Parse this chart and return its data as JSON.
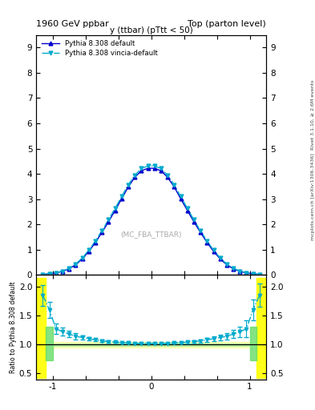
{
  "title_left": "1960 GeV ppbar",
  "title_right": "Top (parton level)",
  "plot_title": "y (ttbar) (pTtt < 50)",
  "watermark": "(MC_FBA_TTBAR)",
  "right_label_top": "Rivet 3.1.10, ≥ 2.6M events",
  "right_label_bottom": "mcplots.cern.ch [arXiv:1306.3436]",
  "ylabel_ratio": "Ratio to Pythia 8.308 default",
  "ylim_main": [
    0,
    9.5
  ],
  "ylim_ratio": [
    0.4,
    2.2
  ],
  "xlim": [
    -1.75,
    1.75
  ],
  "legend1": "Pythia 8.308 default",
  "legend2": "Pythia 8.308 vincia-default",
  "color_main": "#0000cc",
  "color_vincia": "#00aacc",
  "x_values": [
    -1.65,
    -1.55,
    -1.45,
    -1.35,
    -1.25,
    -1.15,
    -1.05,
    -0.95,
    -0.85,
    -0.75,
    -0.65,
    -0.55,
    -0.45,
    -0.35,
    -0.25,
    -0.15,
    -0.05,
    0.05,
    0.15,
    0.25,
    0.35,
    0.45,
    0.55,
    0.65,
    0.75,
    0.85,
    0.95,
    1.05,
    1.15,
    1.25,
    1.35,
    1.45,
    1.55,
    1.65
  ],
  "y_main": [
    0.02,
    0.04,
    0.08,
    0.14,
    0.24,
    0.4,
    0.63,
    0.93,
    1.28,
    1.68,
    2.1,
    2.55,
    3.01,
    3.48,
    3.86,
    4.12,
    4.22,
    4.22,
    4.12,
    3.86,
    3.48,
    3.01,
    2.55,
    2.1,
    1.68,
    1.28,
    0.93,
    0.63,
    0.4,
    0.24,
    0.14,
    0.08,
    0.04,
    0.02
  ],
  "y_vincia": [
    0.02,
    0.04,
    0.08,
    0.15,
    0.26,
    0.43,
    0.67,
    0.98,
    1.34,
    1.75,
    2.18,
    2.64,
    3.1,
    3.57,
    3.94,
    4.21,
    4.31,
    4.31,
    4.21,
    3.94,
    3.57,
    3.1,
    2.64,
    2.18,
    1.75,
    1.34,
    0.98,
    0.67,
    0.43,
    0.26,
    0.15,
    0.08,
    0.04,
    0.02
  ],
  "y_err_main": [
    0.003,
    0.004,
    0.006,
    0.008,
    0.011,
    0.015,
    0.018,
    0.022,
    0.026,
    0.03,
    0.034,
    0.037,
    0.04,
    0.042,
    0.044,
    0.045,
    0.045,
    0.045,
    0.044,
    0.042,
    0.04,
    0.037,
    0.034,
    0.03,
    0.026,
    0.022,
    0.018,
    0.015,
    0.011,
    0.008,
    0.006,
    0.004,
    0.003,
    0.002
  ],
  "y_err_vincia": [
    0.003,
    0.004,
    0.006,
    0.008,
    0.011,
    0.015,
    0.018,
    0.022,
    0.026,
    0.03,
    0.034,
    0.037,
    0.04,
    0.042,
    0.044,
    0.045,
    0.045,
    0.045,
    0.044,
    0.042,
    0.04,
    0.037,
    0.034,
    0.03,
    0.026,
    0.022,
    0.018,
    0.015,
    0.011,
    0.008,
    0.006,
    0.004,
    0.003,
    0.002
  ],
  "ratio_vincia": [
    1.85,
    1.6,
    1.27,
    1.22,
    1.18,
    1.14,
    1.12,
    1.1,
    1.08,
    1.06,
    1.05,
    1.04,
    1.03,
    1.03,
    1.02,
    1.02,
    1.02,
    1.02,
    1.02,
    1.02,
    1.03,
    1.03,
    1.04,
    1.05,
    1.06,
    1.08,
    1.1,
    1.12,
    1.14,
    1.18,
    1.22,
    1.27,
    1.6,
    1.85
  ],
  "ratio_err": [
    0.18,
    0.14,
    0.09,
    0.07,
    0.06,
    0.05,
    0.04,
    0.03,
    0.025,
    0.02,
    0.018,
    0.015,
    0.012,
    0.01,
    0.009,
    0.008,
    0.008,
    0.008,
    0.009,
    0.01,
    0.012,
    0.015,
    0.018,
    0.02,
    0.025,
    0.03,
    0.04,
    0.05,
    0.06,
    0.07,
    0.09,
    0.14,
    0.18,
    0.2
  ],
  "yticks_main": [
    0,
    1,
    2,
    3,
    4,
    5,
    6,
    7,
    8,
    9
  ],
  "yticks_ratio": [
    0.5,
    1.0,
    1.5,
    2.0
  ],
  "xtick_locs": [
    -1.5,
    -1.0,
    -0.5,
    0.0,
    0.5,
    1.0,
    1.5
  ],
  "xtick_labels": [
    "-1",
    "",
    "",
    "0",
    "",
    "",
    "1"
  ],
  "bg_color": "#ffffff"
}
